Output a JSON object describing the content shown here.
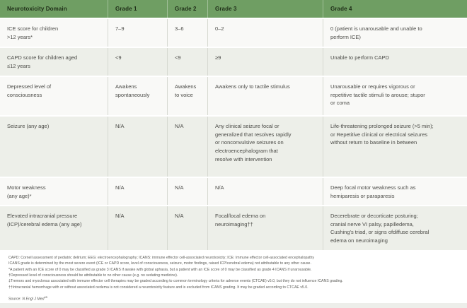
{
  "colors": {
    "header_bg": "#6f9e63",
    "header_text": "#1e2d17",
    "row_bg": "#f9f9f7",
    "row_alt_bg": "#edefe9",
    "divider": "#d6d9d1"
  },
  "header": {
    "columns": [
      "Neurotoxicity Domain",
      "Grade 1",
      "Grade 2",
      "Grade 3",
      "Grade 4"
    ]
  },
  "table": {
    "rows": [
      {
        "domain": "ICE score for children\n>12 years*",
        "grade1": "7–9",
        "grade2": "3–6",
        "grade3": "0–2",
        "grade4": "0 (patient is unarousable and unable to\nperform ICE)"
      },
      {
        "domain": "CAPD score for children aged\n≤12 years",
        "grade1": "<9",
        "grade2": "<9",
        "grade3": "≥9",
        "grade4": "Unable to perform CAPD"
      },
      {
        "domain": "Depressed level of\nconsciousness",
        "grade1": "Awakens\nspontaneously",
        "grade2": "Awakens\nto voice",
        "grade3": "Awakens only to tactile stimulus",
        "grade4": "Unarousable or requires vigorous or\nrepetitive tactile stimuli to arouse; stupor\nor coma"
      },
      {
        "domain": "Seizure (any age)",
        "grade1": "N/A",
        "grade2": "N/A",
        "grade3": "Any clinical seizure focal or\ngeneralized that resolves rapidly\nor nonconvulsive seizures on\nelectroencephalogram that\nresolve with intervention",
        "grade4": "Life-threatening prolonged seizure (>5 min);\nor Repetitive clinical or electrical seizures\nwithout return to baseline in between"
      },
      {
        "domain": "Motor weakness\n(any age)*",
        "grade1": "N/A",
        "grade2": "N/A",
        "grade3": "N/A",
        "grade4": "Deep focal motor weakness such as\nhemiparesis or paraparesis"
      },
      {
        "domain": "Elevated intracranial pressure\n(ICP)/cerebral edema (any age)",
        "grade1": "N/A",
        "grade2": "N/A",
        "grade3": "Focal/local edema on\nneuroimaging††",
        "grade4": "Decerebrate or decorticate posturing;\ncranial nerve VI palsy, papilledema,\nCushing's triad, or signs ofdiffuse cerebral\nedema on neuroimaging"
      }
    ]
  },
  "footnotes": [
    "CAPD: Cornell assessment of pediatric delirium; EEG: electroencephalography; ICANS: immune effector cell-associated neurotoxicity; ICE: Immune effector cell-associated encephalopathy",
    "ICANS grade is determined by the most severe event (ICE or CAPD score, level of consciousness, seizure, motor findings, raised ICP/cerebral edema) not attributable to any other cause.",
    "*A patient with an ICE score of 0 may be classified as grade 3 ICANS if awake with global aphasia, but a patient with an ICE score of 0 may be classified as grade 4 ICANS if unarousable.",
    "†Depressed level of consciousness should be attributable to no other cause (e.g. no sedating medicine).",
    "‡Tremors and myoclonus associated with immune effector cell therapies may be graded according to common terminology criteria for adverse events (CTCAE) v5.0, but they do not influence ICANS grading.",
    "††Intracranial hemorrhage with or without associated oedema is not considered a neurotoxicity feature and is excluded from ICANS grading. It may be graded according to CTCAE v5.0."
  ],
  "source": {
    "label": "Source: ",
    "journal": "N Engl J Med",
    "ref": "45"
  }
}
